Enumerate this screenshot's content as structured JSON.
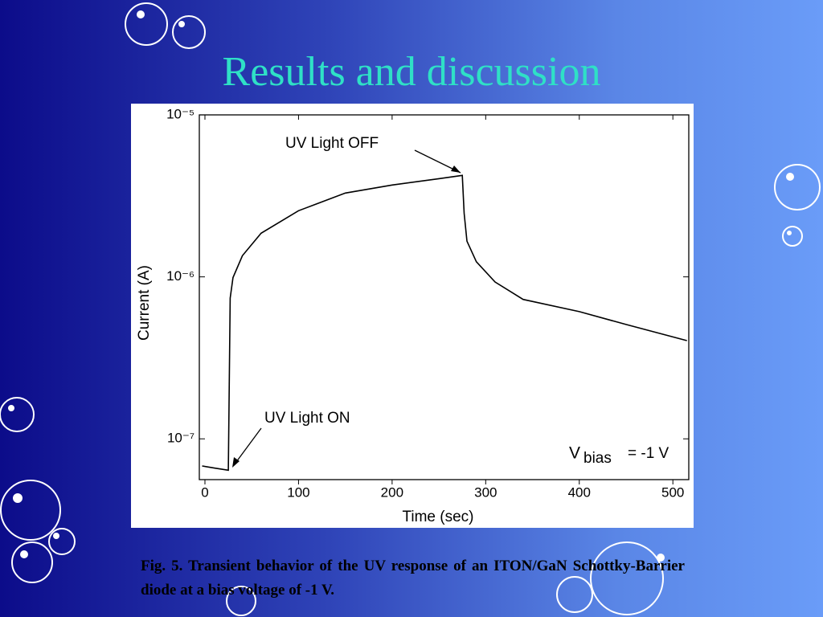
{
  "title": "Results and discussion",
  "caption": "Fig. 5. Transient behavior of the UV response of an ITON/GaN Schottky-Barrier diode at a bias voltage of -1 V.",
  "chart_data": {
    "type": "line",
    "x_label": "Time (sec)",
    "y_label": "Current (A)",
    "log_y": true,
    "color": "#000000",
    "annotations": {
      "off": "UV Light OFF",
      "on": "UV Light ON",
      "bias_symbol": "V",
      "bias_sub": "bias",
      "bias_value": "= -1 V"
    },
    "x": [
      -3,
      10,
      25,
      27,
      30,
      40,
      60,
      100,
      150,
      200,
      250,
      275,
      277,
      280,
      290,
      310,
      340,
      400,
      450,
      515
    ],
    "values": [
      6.8e-08,
      6.6e-08,
      6.4e-08,
      7.4e-07,
      9.9e-07,
      1.35e-06,
      1.86e-06,
      2.56e-06,
      3.29e-06,
      3.69e-06,
      4.04e-06,
      4.23e-06,
      2.47e-06,
      1.66e-06,
      1.24e-06,
      9.3e-07,
      7.26e-07,
      6.1e-07,
      5.08e-07,
      4.04e-07
    ],
    "xlim": [
      -6,
      517
    ],
    "xticks": [
      0,
      100,
      200,
      300,
      400,
      500
    ],
    "ylim": [
      5.6e-08,
      1e-05
    ],
    "yticks": [
      {
        "value": 1e-07,
        "label": "10⁻⁷"
      },
      {
        "value": 1e-06,
        "label": "10⁻⁶"
      },
      {
        "value": 1e-05,
        "label": "10⁻⁵"
      }
    ]
  }
}
